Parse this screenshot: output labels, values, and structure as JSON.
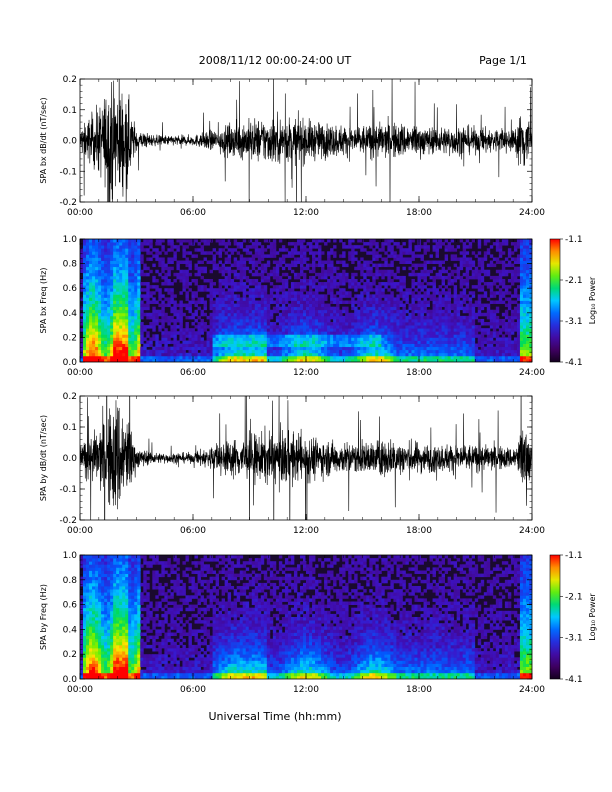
{
  "header": {
    "date_range": "2008/11/12  00:00-24:00 UT",
    "page": "Page 1/1"
  },
  "xlabel": "Universal Time (hh:mm)",
  "colors": {
    "trace": "#000000",
    "spectrogram_background": "#1a0a2e"
  },
  "chart_data": [
    {
      "type": "line",
      "ylabel": "SPA bx dB/dt (nT/sec)",
      "xlim": [
        "00:00",
        "24:00"
      ],
      "ylim": [
        -0.2,
        0.2
      ],
      "x_ticks": [
        "00:00",
        "06:00",
        "12:00",
        "18:00",
        "24:00"
      ],
      "y_ticks": [
        "-0.2",
        "-0.1",
        "0.0",
        "0.1",
        "0.2"
      ],
      "series": [
        {
          "x_hours": [
            0,
            1,
            1.6,
            2,
            2.5,
            3,
            4,
            6,
            7,
            8,
            9,
            10,
            11,
            12,
            13,
            14,
            15,
            16,
            17,
            18,
            19,
            20,
            21,
            22,
            23,
            23.7,
            24
          ],
          "y_amplitude_nT_per_s": [
            0.05,
            0.13,
            0.22,
            0.25,
            0.18,
            0.04,
            0.02,
            0.02,
            0.04,
            0.06,
            0.08,
            0.09,
            0.09,
            0.08,
            0.07,
            0.06,
            0.06,
            0.07,
            0.07,
            0.06,
            0.05,
            0.06,
            0.05,
            0.05,
            0.04,
            0.15,
            0.04
          ]
        }
      ]
    },
    {
      "type": "heatmap",
      "ylabel": "SPA bx Freq (Hz)",
      "xlim": [
        "00:00",
        "24:00"
      ],
      "ylim": [
        0.0,
        1.0
      ],
      "x_ticks": [
        "00:00",
        "06:00",
        "12:00",
        "18:00",
        "24:00"
      ],
      "y_ticks": [
        "0.0",
        "0.2",
        "0.4",
        "0.6",
        "0.8",
        "1.0"
      ],
      "colorbar": {
        "label": "Log₁₀ Power",
        "range": [
          -4.1,
          -1.1
        ],
        "ticks": [
          "-1.1",
          "-2.1",
          "-3.1",
          "-4.1"
        ],
        "colormap": "rainbow"
      }
    },
    {
      "type": "line",
      "ylabel": "SPA by dB/dt (nT/sec)",
      "xlim": [
        "00:00",
        "24:00"
      ],
      "ylim": [
        -0.2,
        0.2
      ],
      "x_ticks": [
        "00:00",
        "06:00",
        "12:00",
        "18:00",
        "24:00"
      ],
      "y_ticks": [
        "-0.2",
        "-0.1",
        "0.0",
        "0.1",
        "0.2"
      ],
      "series": [
        {
          "x_hours": [
            0,
            1,
            1.6,
            2,
            2.5,
            3,
            4,
            6,
            7,
            8,
            9,
            10,
            11,
            12,
            13,
            14,
            15,
            16,
            17,
            18,
            19,
            20,
            21,
            22,
            23,
            23.7,
            24
          ],
          "y_amplitude_nT_per_s": [
            0.05,
            0.12,
            0.2,
            0.25,
            0.18,
            0.04,
            0.02,
            0.02,
            0.05,
            0.07,
            0.09,
            0.1,
            0.1,
            0.09,
            0.07,
            0.06,
            0.06,
            0.07,
            0.07,
            0.06,
            0.05,
            0.06,
            0.05,
            0.05,
            0.04,
            0.15,
            0.04
          ]
        }
      ]
    },
    {
      "type": "heatmap",
      "ylabel": "SPA by Freq (Hz)",
      "xlim": [
        "00:00",
        "24:00"
      ],
      "ylim": [
        0.0,
        1.0
      ],
      "x_ticks": [
        "00:00",
        "06:00",
        "12:00",
        "18:00",
        "24:00"
      ],
      "y_ticks": [
        "0.0",
        "0.2",
        "0.4",
        "0.6",
        "0.8",
        "1.0"
      ],
      "colorbar": {
        "label": "Log₁₀ Power",
        "range": [
          -4.1,
          -1.1
        ],
        "ticks": [
          "-1.1",
          "-2.1",
          "-3.1",
          "-4.1"
        ],
        "colormap": "rainbow"
      }
    }
  ]
}
